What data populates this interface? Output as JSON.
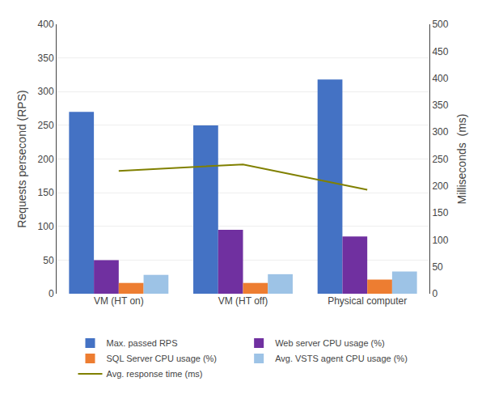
{
  "chart_data": {
    "type": "bar",
    "categories": [
      "VM (HT on)",
      "VM (HT off)",
      "Physical computer"
    ],
    "series": [
      {
        "name": "Max. passed RPS",
        "color": "#4472C4",
        "values": [
          270,
          250,
          318
        ]
      },
      {
        "name": "Web server CPU usage (%)",
        "color": "#7030A0",
        "values": [
          50,
          95,
          85
        ]
      },
      {
        "name": "SQL Server CPU usage (%)",
        "color": "#ED7D31",
        "values": [
          16,
          16,
          21
        ]
      },
      {
        "name": "Avg. VSTS agent CPU usage (%)",
        "color": "#9DC3E6",
        "values": [
          28,
          29,
          33
        ]
      },
      {
        "name": "Avg. response time (ms)",
        "color": "#808000",
        "type": "line",
        "axis": "y2",
        "values": [
          228,
          240,
          193
        ]
      }
    ],
    "ylabel": "Requests persecond (RPS)",
    "y2label": "Milliseconds  (ms)",
    "ylim": [
      0,
      400
    ],
    "yticks": [
      0,
      50,
      100,
      150,
      200,
      250,
      300,
      350,
      400
    ],
    "y2lim": [
      0,
      500
    ],
    "y2ticks": [
      0,
      50,
      100,
      150,
      200,
      250,
      300,
      350,
      400,
      450,
      500
    ],
    "grid": true,
    "legend": "bottom"
  }
}
